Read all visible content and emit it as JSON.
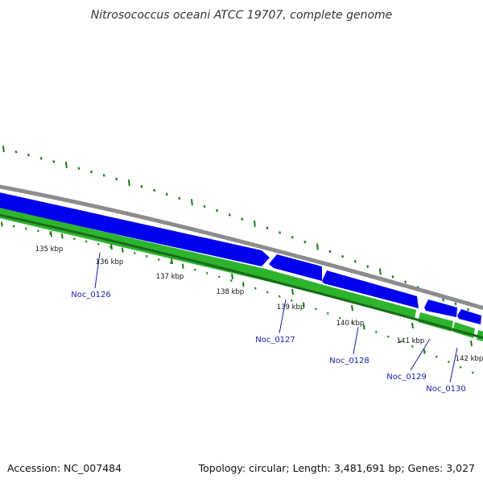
{
  "title": "Nitrosococcus oceani ATCC 19707, complete genome",
  "footer": {
    "accession": "Accession: NC_007484",
    "summary": "Topology: circular; Length: 3,481,691 bp; Genes: 3,027"
  },
  "colors": {
    "backbone": "#8c8c8c",
    "reverse_strand": "#0000ee",
    "forward_strand": "#2db42d",
    "tick": "#1a7a1a",
    "label": "#1a1aaa"
  },
  "scale_ticks": [
    {
      "kbp": 135,
      "label": "135 kbp"
    },
    {
      "kbp": 136,
      "label": "136 kbp"
    },
    {
      "kbp": 137,
      "label": "137 kbp"
    },
    {
      "kbp": 138,
      "label": "138 kbp"
    },
    {
      "kbp": 139,
      "label": "139 kbp"
    },
    {
      "kbp": 140,
      "label": "140 kbp"
    },
    {
      "kbp": 141,
      "label": "141 kbp"
    },
    {
      "kbp": 142,
      "label": "142 kbp"
    }
  ],
  "genes": [
    {
      "name": "Noc_0126"
    },
    {
      "name": "Noc_0127"
    },
    {
      "name": "Noc_0128"
    },
    {
      "name": "Noc_0129"
    },
    {
      "name": "Noc_0130"
    }
  ]
}
